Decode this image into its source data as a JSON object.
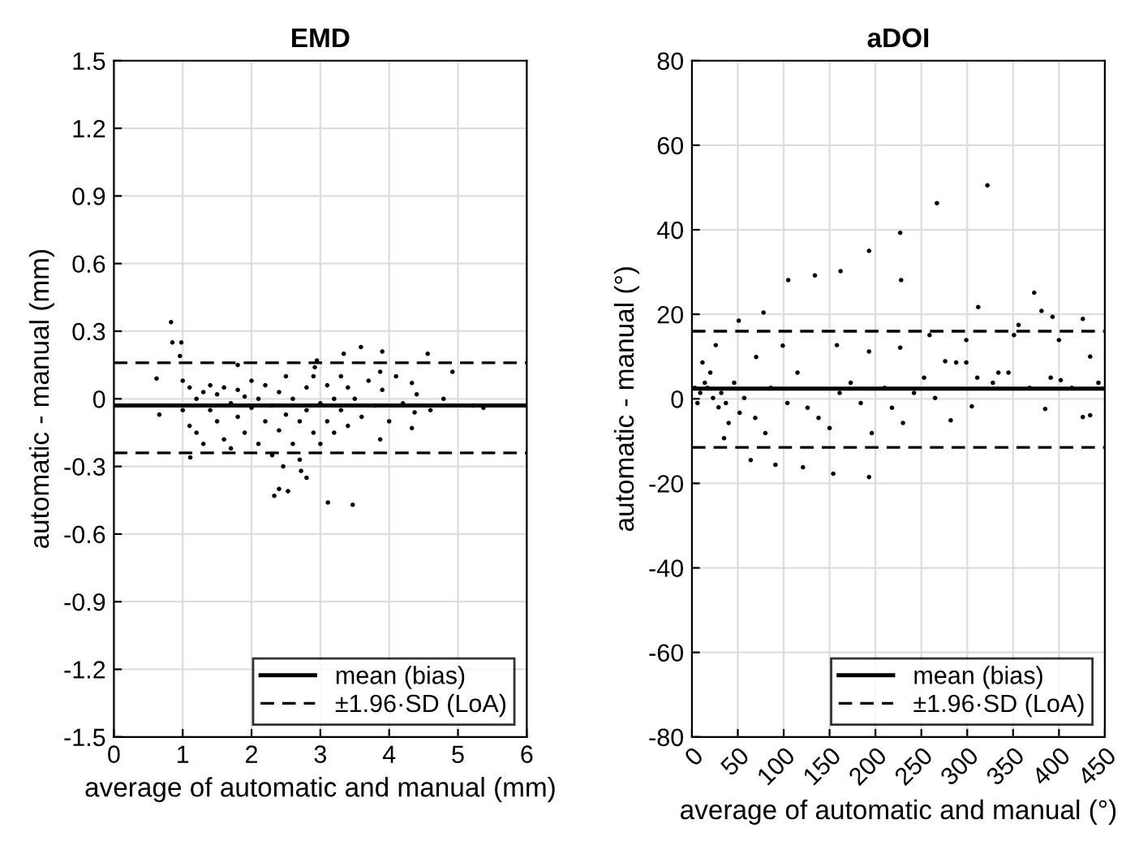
{
  "chart_data": [
    {
      "type": "scatter",
      "title": "EMD",
      "xlabel": "average of automatic and manual (mm)",
      "ylabel": "automatic - manual (mm)",
      "xlim": [
        0,
        6
      ],
      "xticks": [
        0,
        1,
        2,
        3,
        4,
        5,
        6
      ],
      "ylim": [
        -1.5,
        1.5
      ],
      "yticks": [
        -1.5,
        -1.2,
        -0.9,
        -0.6,
        -0.3,
        0,
        0.3,
        0.6,
        0.9,
        1.2,
        1.5
      ],
      "grid": true,
      "legend": "bottom right",
      "marker": "circle",
      "series": [
        {
          "color": "#000000",
          "x": [
            0.83,
            0.85,
            0.98,
            0.66,
            1.11,
            2.33,
            2.53,
            2.4,
            3.11,
            3.47,
            3.59,
            3.34,
            3.9,
            4.56,
            4.92,
            4.79,
            5.37,
            5.22,
            2.8,
            2.46,
            2.72,
            0.62,
            0.96,
            1.8,
            2.95,
            2.92,
            3.87,
            4.33,
            4.37,
            3.87,
            4.33,
            1.0,
            1.0,
            1.1,
            1.1,
            1.2,
            1.2,
            1.3,
            1.3,
            1.4,
            1.4,
            1.5,
            1.5,
            1.6,
            1.6,
            1.7,
            1.7,
            1.8,
            1.8,
            1.9,
            1.9,
            2.0,
            2.0,
            2.1,
            2.1,
            2.2,
            2.2,
            2.3,
            2.3,
            2.4,
            2.4,
            2.5,
            2.5,
            2.6,
            2.6,
            2.7,
            2.7,
            2.8,
            2.8,
            2.9,
            2.9,
            3.0,
            3.0,
            3.1,
            3.1,
            3.2,
            3.2,
            3.3,
            3.3,
            3.4,
            3.4,
            3.5,
            3.6,
            3.7,
            3.8,
            3.9,
            4.0,
            4.1,
            4.2,
            4.4,
            4.6
          ],
          "values": [
            0.34,
            0.25,
            0.25,
            -0.07,
            -0.26,
            -0.43,
            -0.41,
            -0.4,
            -0.46,
            -0.47,
            0.23,
            0.2,
            0.21,
            0.2,
            0.12,
            0.0,
            -0.04,
            -0.03,
            -0.35,
            -0.3,
            -0.32,
            0.09,
            0.19,
            0.15,
            0.17,
            0.14,
            -0.18,
            -0.13,
            -0.06,
            0.12,
            0.07,
            0.08,
            -0.05,
            0.05,
            -0.12,
            0.0,
            -0.15,
            0.03,
            -0.2,
            -0.05,
            0.06,
            -0.1,
            0.02,
            -0.18,
            0.05,
            -0.02,
            -0.22,
            0.04,
            -0.08,
            -0.15,
            0.01,
            -0.04,
            0.08,
            -0.2,
            0.0,
            -0.1,
            0.06,
            -0.03,
            -0.25,
            0.03,
            -0.14,
            -0.07,
            0.1,
            -0.2,
            0.0,
            -0.1,
            -0.27,
            0.05,
            -0.05,
            -0.15,
            0.1,
            -0.02,
            -0.2,
            0.06,
            -0.1,
            0.0,
            -0.15,
            0.1,
            -0.05,
            -0.12,
            0.05,
            0.0,
            -0.08,
            0.08,
            -0.03,
            0.04,
            -0.1,
            0.1,
            -0.02,
            0.02,
            -0.05
          ]
        }
      ],
      "ref_lines": [
        {
          "axis": "y",
          "value": -0.03,
          "label": "mean (bias)",
          "line_style": "solid",
          "color": "#000000"
        },
        {
          "axis": "y",
          "value": 0.16,
          "label": "±1.96·SD (LoA)",
          "line_style": "dashed",
          "color": "#000000"
        },
        {
          "axis": "y",
          "value": -0.24,
          "line_style": "dashed",
          "color": "#000000"
        }
      ]
    },
    {
      "type": "scatter",
      "title": "aDOI",
      "xlabel": "average of automatic and manual (°)",
      "ylabel": "automatic - manual (°)",
      "xlim": [
        0,
        450
      ],
      "xticks": [
        0,
        50,
        100,
        150,
        200,
        250,
        300,
        350,
        400,
        450
      ],
      "ylim": [
        -80,
        80
      ],
      "yticks": [
        -80,
        -60,
        -40,
        -20,
        0,
        20,
        40,
        60,
        80
      ],
      "grid": true,
      "legend": "bottom right",
      "marker": "circle",
      "series": [
        {
          "color": "#000000",
          "x": [
            322,
            267,
            227,
            228,
            193,
            162,
            134,
            105,
            78,
            51,
            312,
            373,
            381,
            393,
            426,
            193,
            154,
            121,
            91,
            64,
            385,
            426,
            434,
            282,
            305,
            227,
            193,
            158,
            99,
            70,
            259,
            299,
            351,
            356,
            400,
            434,
            276,
            299,
            334,
            402,
            11.5,
            17,
            6,
            29,
            40,
            35,
            20,
            26,
            46,
            57,
            69,
            80,
            86,
            104,
            115,
            126,
            138,
            150,
            161,
            173,
            184,
            196,
            210,
            218,
            230,
            242,
            253,
            265,
            288,
            311,
            328,
            345,
            368,
            391,
            414,
            443,
            3,
            9,
            14,
            23,
            32,
            37,
            52
          ],
          "values": [
            50.5,
            46.3,
            39.3,
            28.1,
            35,
            30.2,
            29.2,
            28.1,
            20.4,
            18.5,
            21.7,
            25.1,
            20.8,
            19.4,
            18.9,
            -18.5,
            -17.7,
            -16.2,
            -15.6,
            -14.5,
            -2.4,
            -4.3,
            -3.9,
            -5.1,
            -1.8,
            12.1,
            11.2,
            12.7,
            12.6,
            9.9,
            15.1,
            13.9,
            15.1,
            17.5,
            13.9,
            10,
            8.9,
            8.6,
            6.2,
            4.4,
            8.6,
            2.6,
            -1,
            -2,
            -5.7,
            -9.3,
            6.2,
            12.7,
            3.8,
            0.2,
            -4.5,
            -8.1,
            2.6,
            -1,
            6.2,
            -2.1,
            -4.5,
            -6.9,
            1.4,
            3.8,
            -1,
            -8.1,
            2.6,
            -2.1,
            -5.7,
            1.4,
            5,
            0.2,
            8.6,
            5,
            3.8,
            6.2,
            2.6,
            5,
            2.6,
            3.8,
            2.6,
            1.4,
            3.8,
            0.2,
            1.4,
            -1,
            -3.3
          ]
        }
      ],
      "ref_lines": [
        {
          "axis": "y",
          "value": 2.4,
          "label": "mean (bias)",
          "line_style": "solid",
          "color": "#000000"
        },
        {
          "axis": "y",
          "value": 16,
          "label": "±1.96·SD (LoA)",
          "line_style": "dashed",
          "color": "#000000"
        },
        {
          "axis": "y",
          "value": -11.5,
          "line_style": "dashed",
          "color": "#000000"
        }
      ]
    }
  ]
}
